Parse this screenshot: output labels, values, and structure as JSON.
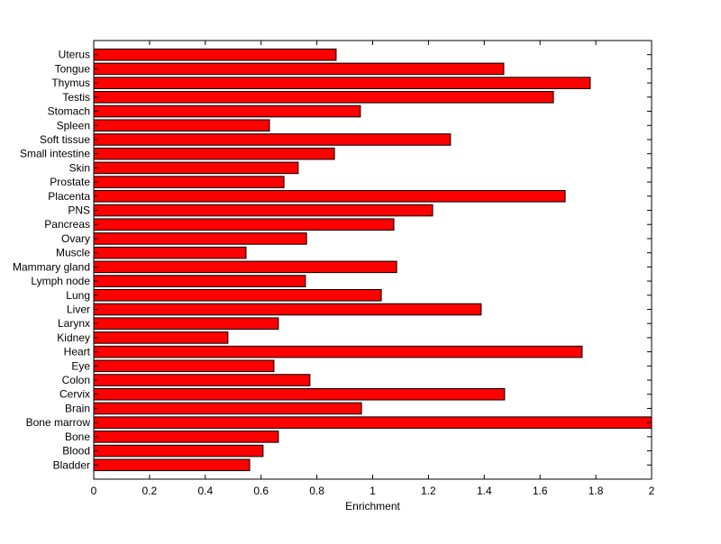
{
  "chart_data": {
    "type": "bar",
    "orientation": "horizontal",
    "title": "",
    "xlabel": "Enrichment",
    "ylabel": "",
    "xlim": [
      0,
      2
    ],
    "xticks": [
      "0",
      "0.2",
      "0.4",
      "0.6",
      "0.8",
      "1",
      "1.2",
      "1.4",
      "1.6",
      "1.8",
      "2"
    ],
    "grid": false,
    "bar_color": "#ff0000",
    "categories": [
      "Uterus",
      "Tongue",
      "Thymus",
      "Testis",
      "Stomach",
      "Spleen",
      "Soft tissue",
      "Small intestine",
      "Skin",
      "Prostate",
      "Placenta",
      "PNS",
      "Pancreas",
      "Ovary",
      "Muscle",
      "Mammary gland",
      "Lymph node",
      "Lung",
      "Liver",
      "Larynx",
      "Kidney",
      "Heart",
      "Eye",
      "Colon",
      "Cervix",
      "Brain",
      "Bone marrow",
      "Bone",
      "Blood",
      "Bladder"
    ],
    "values": [
      0.869,
      1.47,
      1.78,
      1.648,
      0.956,
      0.63,
      1.279,
      0.863,
      0.733,
      0.682,
      1.69,
      1.215,
      1.076,
      0.763,
      0.546,
      1.086,
      0.759,
      1.031,
      1.389,
      0.662,
      0.481,
      1.751,
      0.646,
      0.775,
      1.473,
      0.96,
      2.0,
      0.662,
      0.607,
      0.559
    ]
  }
}
